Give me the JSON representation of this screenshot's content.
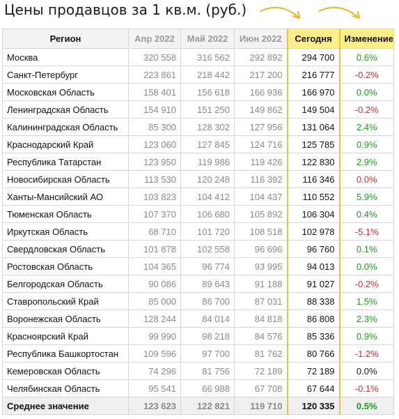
{
  "title": "Цены продавцов за 1 кв.м. (руб.)",
  "colors": {
    "header_highlight": "#ffef8a",
    "positive": "#1e9a1e",
    "negative": "#d42a2a",
    "arrow": "#f0b429"
  },
  "table": {
    "headers": {
      "region": "Регион",
      "apr": "Апр 2022",
      "may": "Май 2022",
      "jun": "Июн 2022",
      "today": "Сегодня",
      "change": "Изменение"
    },
    "rows": [
      {
        "region": "Москва",
        "apr": "320 558",
        "may": "316 562",
        "jun": "292 892",
        "today": "294 700",
        "change": "0.6%",
        "sign": "pos"
      },
      {
        "region": "Санкт-Петербург",
        "apr": "223 861",
        "may": "218 442",
        "jun": "217 200",
        "today": "216 777",
        "change": "-0.2%",
        "sign": "neg"
      },
      {
        "region": "Московская Область",
        "apr": "158 401",
        "may": "156 618",
        "jun": "166 936",
        "today": "166 970",
        "change": "0.0%",
        "sign": "pos"
      },
      {
        "region": "Ленинградская Область",
        "apr": "154 910",
        "may": "151 250",
        "jun": "149 862",
        "today": "149 504",
        "change": "-0.2%",
        "sign": "neg"
      },
      {
        "region": "Калининградская Область",
        "apr": "85 300",
        "may": "128 302",
        "jun": "127 956",
        "today": "131 064",
        "change": "2.4%",
        "sign": "pos"
      },
      {
        "region": "Краснодарский Край",
        "apr": "123 060",
        "may": "127 845",
        "jun": "124 716",
        "today": "125 785",
        "change": "0.9%",
        "sign": "pos"
      },
      {
        "region": "Республика Татарстан",
        "apr": "123 950",
        "may": "119 986",
        "jun": "119 426",
        "today": "122 830",
        "change": "2.9%",
        "sign": "pos"
      },
      {
        "region": "Новосибирская Область",
        "apr": "113 530",
        "may": "120 248",
        "jun": "116 392",
        "today": "116 346",
        "change": "0.0%",
        "sign": "neg"
      },
      {
        "region": "Ханты-Мансийский АО",
        "apr": "103 823",
        "may": "104 412",
        "jun": "104 437",
        "today": "110 552",
        "change": "5.9%",
        "sign": "pos"
      },
      {
        "region": "Тюменская Область",
        "apr": "107 370",
        "may": "106 680",
        "jun": "105 892",
        "today": "106 304",
        "change": "0.4%",
        "sign": "pos"
      },
      {
        "region": "Иркутская Область",
        "apr": "68 710",
        "may": "101 720",
        "jun": "108 518",
        "today": "102 978",
        "change": "-5.1%",
        "sign": "neg"
      },
      {
        "region": "Свердловская Область",
        "apr": "101 878",
        "may": "102 558",
        "jun": "96 696",
        "today": "96 760",
        "change": "0.1%",
        "sign": "pos"
      },
      {
        "region": "Ростовская Область",
        "apr": "104 365",
        "may": "96 774",
        "jun": "93 995",
        "today": "94 013",
        "change": "0.0%",
        "sign": "pos"
      },
      {
        "region": "Белгородская Область",
        "apr": "90 086",
        "may": "89 643",
        "jun": "91 188",
        "today": "91 027",
        "change": "-0.2%",
        "sign": "neg"
      },
      {
        "region": "Ставропольский Край",
        "apr": "85 000",
        "may": "86 700",
        "jun": "87 031",
        "today": "88 338",
        "change": "1.5%",
        "sign": "pos"
      },
      {
        "region": "Воронежская Область",
        "apr": "128 244",
        "may": "84 014",
        "jun": "84 818",
        "today": "86 808",
        "change": "2.3%",
        "sign": "pos"
      },
      {
        "region": "Красноярский Край",
        "apr": "99 990",
        "may": "98 218",
        "jun": "84 576",
        "today": "85 336",
        "change": "0.9%",
        "sign": "pos"
      },
      {
        "region": "Республика Башкортостан",
        "apr": "109 596",
        "may": "97 700",
        "jun": "81 762",
        "today": "80 766",
        "change": "-1.2%",
        "sign": "neg"
      },
      {
        "region": "Кемеровская Область",
        "apr": "74 296",
        "may": "81 756",
        "jun": "72 189",
        "today": "72 189",
        "change": "0.0%",
        "sign": "zero"
      },
      {
        "region": "Челябинская Область",
        "apr": "95 541",
        "may": "66 988",
        "jun": "67 708",
        "today": "67 644",
        "change": "-0.1%",
        "sign": "neg"
      }
    ],
    "average": {
      "region": "Среднее значение",
      "apr": "123 623",
      "may": "122 821",
      "jun": "119 710",
      "today": "120 335",
      "change": "0.5%",
      "sign": "pos"
    }
  }
}
